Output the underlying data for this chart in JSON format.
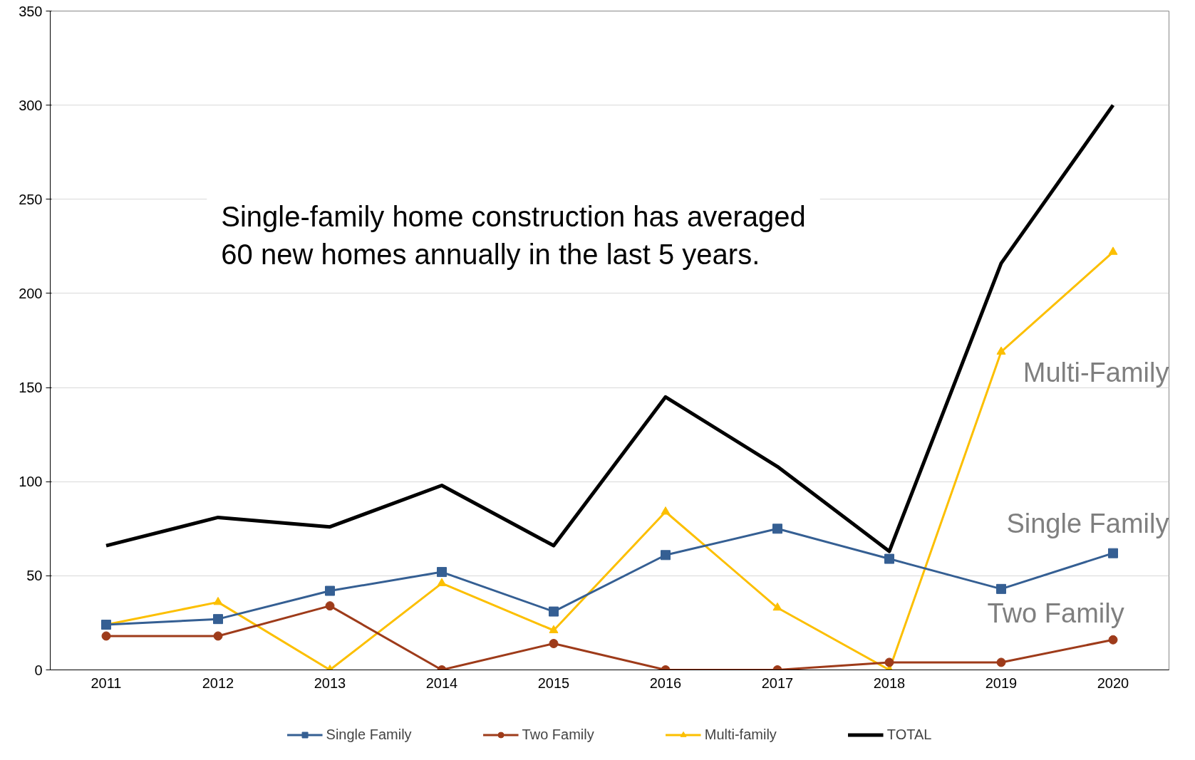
{
  "chart_data": {
    "type": "line",
    "categories": [
      "2011",
      "2012",
      "2013",
      "2014",
      "2015",
      "2016",
      "2017",
      "2018",
      "2019",
      "2020"
    ],
    "series": [
      {
        "name": "Single Family",
        "color": "#355f93",
        "marker": "square",
        "values": [
          24,
          27,
          42,
          52,
          31,
          61,
          75,
          59,
          43,
          62
        ]
      },
      {
        "name": "Two Family",
        "color": "#9e3b1a",
        "marker": "circle",
        "values": [
          18,
          18,
          34,
          0,
          14,
          0,
          0,
          4,
          4,
          16
        ]
      },
      {
        "name": "Multi-family",
        "color": "#fcbf00",
        "marker": "triangle",
        "values": [
          24,
          36,
          0,
          46,
          21,
          84,
          33,
          0,
          169,
          222
        ]
      },
      {
        "name": "TOTAL",
        "color": "#000000",
        "marker": "none",
        "values": [
          66,
          81,
          76,
          98,
          66,
          145,
          108,
          63,
          216,
          300
        ]
      }
    ],
    "ylim": [
      0,
      350
    ],
    "yticks": [
      0,
      50,
      100,
      150,
      200,
      250,
      300,
      350
    ],
    "grid": "y",
    "legend": "bottom",
    "annotations": [
      "Single-family home construction has averaged\n60 new homes annually in the last 5 years.",
      "Multi-Family",
      "Single Family",
      "Two Family"
    ]
  }
}
